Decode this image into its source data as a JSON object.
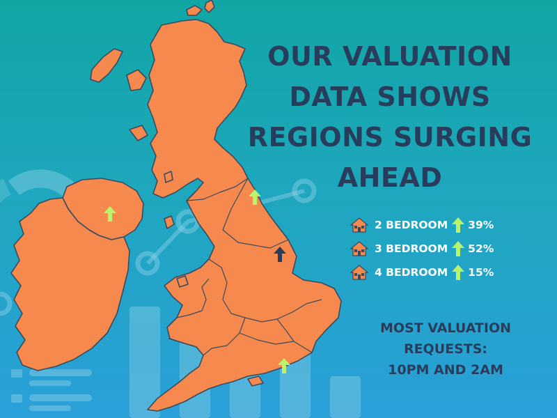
{
  "headline": {
    "lines": [
      "OUR VALUATION",
      "DATA SHOWS",
      "REGIONS SURGING",
      "AHEAD"
    ]
  },
  "stats": [
    {
      "label": "2 BEDROOM",
      "value": "39%",
      "icon": "house-icon",
      "trend": "up-arrow-icon"
    },
    {
      "label": "3 BEDROOM",
      "value": "52%",
      "icon": "house-icon",
      "trend": "up-arrow-icon"
    },
    {
      "label": "4 BEDROOM",
      "value": "15%",
      "icon": "house-icon",
      "trend": "up-arrow-icon"
    }
  ],
  "requests": {
    "lines": [
      "MOST VALUATION",
      "REQUESTS:",
      "10PM AND 2AM"
    ]
  },
  "map": {
    "region": "United Kingdom and Ireland",
    "markers": [
      {
        "place": "Northern Ireland",
        "icon": "up-arrow-icon",
        "color": "#b9f46a"
      },
      {
        "place": "North East England",
        "icon": "up-arrow-icon",
        "color": "#b9f46a"
      },
      {
        "place": "Yorkshire",
        "icon": "up-arrow-icon",
        "color": "#283c5c"
      },
      {
        "place": "South East England",
        "icon": "up-arrow-icon",
        "color": "#b9f46a"
      }
    ]
  },
  "colors": {
    "land": "#f6894e",
    "outline": "#3a4a5c",
    "headline_text": "#283c5c",
    "accent_arrow": "#b9f46a",
    "background_top": "#11a6a4",
    "background_bottom": "#2a9fd9"
  }
}
